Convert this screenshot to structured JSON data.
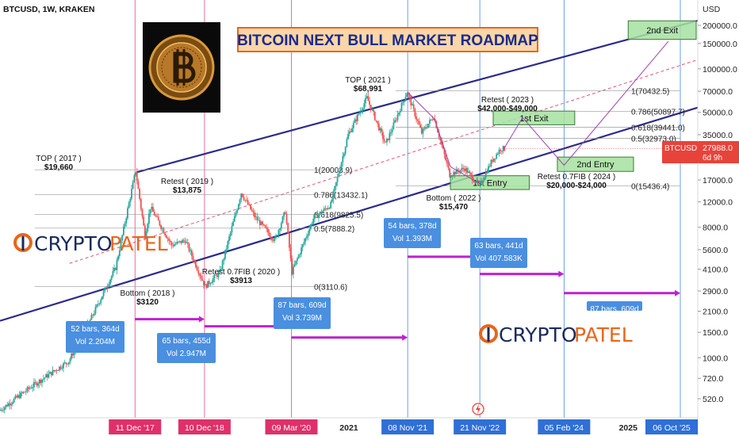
{
  "header": {
    "symbol": "BTCUSD, 1W, KRAKEN",
    "currency": "USD"
  },
  "banner": {
    "title": "BITCOIN NEXT BULL MARKET ROADMAP"
  },
  "brand": {
    "logo_text_left": "CRYPTO",
    "logo_text_right": "PATEL",
    "colors": {
      "blue": "#1a2a5e",
      "orange": "#e8661a"
    }
  },
  "price_badge": {
    "symbol": "BTCUSD",
    "price": "27988.0",
    "countdown": "6d 9h"
  },
  "chart_data": {
    "type": "candlestick",
    "y_scale": "log",
    "y_ticks": [
      "200000.0",
      "150000.0",
      "100000.0",
      "70000.0",
      "50000.0",
      "35000.0",
      "27988.0",
      "17000.0",
      "12000.0",
      "8000.0",
      "5600.0",
      "4100.0",
      "2900.0",
      "2100.0",
      "1500.0",
      "1000.0",
      "720.0",
      "520.0"
    ],
    "x_ticks": [
      {
        "label": "11 Dec '17",
        "style": "pink"
      },
      {
        "label": "10 Dec '18",
        "style": "pink"
      },
      {
        "label": "09 Mar '20",
        "style": "pink"
      },
      {
        "label": "2021",
        "style": "plain"
      },
      {
        "label": "08 Nov '21",
        "style": "blue"
      },
      {
        "label": "21 Nov '22",
        "style": "blue"
      },
      {
        "label": "05 Feb '24",
        "style": "blue"
      },
      {
        "label": "2025",
        "style": "plain"
      },
      {
        "label": "06 Oct '25",
        "style": "blue"
      }
    ],
    "price_anchors": [
      {
        "date": "2016-01-04",
        "price": 430
      },
      {
        "date": "2016-07-04",
        "price": 650
      },
      {
        "date": "2017-01-02",
        "price": 950
      },
      {
        "date": "2017-05-01",
        "price": 1900
      },
      {
        "date": "2017-09-04",
        "price": 4200
      },
      {
        "date": "2017-12-18",
        "price": 19660
      },
      {
        "date": "2018-02-05",
        "price": 7000
      },
      {
        "date": "2018-03-05",
        "price": 11000
      },
      {
        "date": "2018-06-25",
        "price": 6000
      },
      {
        "date": "2018-09-03",
        "price": 6500
      },
      {
        "date": "2018-12-17",
        "price": 3120
      },
      {
        "date": "2019-03-04",
        "price": 3900
      },
      {
        "date": "2019-06-24",
        "price": 13875
      },
      {
        "date": "2019-09-02",
        "price": 9500
      },
      {
        "date": "2019-12-16",
        "price": 6500
      },
      {
        "date": "2020-02-10",
        "price": 10300
      },
      {
        "date": "2020-03-16",
        "price": 3913
      },
      {
        "date": "2020-07-06",
        "price": 9200
      },
      {
        "date": "2020-10-05",
        "price": 11500
      },
      {
        "date": "2021-01-04",
        "price": 35000
      },
      {
        "date": "2021-04-12",
        "price": 63000
      },
      {
        "date": "2021-07-19",
        "price": 30000
      },
      {
        "date": "2021-11-08",
        "price": 68991
      },
      {
        "date": "2022-01-24",
        "price": 36000
      },
      {
        "date": "2022-03-28",
        "price": 47000
      },
      {
        "date": "2022-06-20",
        "price": 18500
      },
      {
        "date": "2022-09-05",
        "price": 20500
      },
      {
        "date": "2022-11-21",
        "price": 15470
      },
      {
        "date": "2023-01-30",
        "price": 23500
      },
      {
        "date": "2023-03-13",
        "price": 28000
      },
      {
        "date": "2023-03-27",
        "price": 27988
      }
    ],
    "series": [
      {
        "name": "Projected path",
        "points": [
          [
            "2023-03-27",
            27988
          ],
          [
            "2023-07-03",
            46000
          ],
          [
            "2024-02-05",
            21500
          ],
          [
            "2025-08-04",
            155000
          ]
        ]
      }
    ],
    "channel": {
      "upper": [
        [
          "2017-12-18",
          19200
        ],
        [
          "2025-10-06",
          200000
        ]
      ],
      "lower": [
        [
          "2016-01-04",
          1800
        ],
        [
          "2025-10-06",
          50000
        ]
      ],
      "mid": [
        [
          "2017-01-02",
          4500
        ],
        [
          "2025-10-06",
          110000
        ]
      ]
    },
    "fib_levels": [
      {
        "label": "1(70432.5)",
        "value": 70432.5
      },
      {
        "label": "0.786(50897.7)",
        "value": 50897.7
      },
      {
        "label": "0.618(39441.0)",
        "value": 39441.0
      },
      {
        "label": "0.5(32973.0)",
        "value": 32973.0
      },
      {
        "label": "0(15436.4)",
        "value": 15436.4
      },
      {
        "label": "1(20003.9)",
        "value": 20003.9
      },
      {
        "label": "0.786(13432.1)",
        "value": 13432.1
      },
      {
        "label": "0.618(9825.5)",
        "value": 9825.5
      },
      {
        "label": "0.5(7888.2)",
        "value": 7888.2
      },
      {
        "label": "0(3110.6)",
        "value": 3110.6
      }
    ],
    "annotations": [
      {
        "lines": [
          "TOP ( 2017 )",
          "$19,660"
        ]
      },
      {
        "lines": [
          "Retest ( 2019 )",
          "$13,875"
        ]
      },
      {
        "lines": [
          "Bottom ( 2018 )",
          "$3120"
        ]
      },
      {
        "lines": [
          "Retest 0.7FIB ( 2020 )",
          "$3913"
        ]
      },
      {
        "lines": [
          "TOP ( 2021 )",
          "$68,991"
        ]
      },
      {
        "lines": [
          "Bottom ( 2022 )",
          "$15,470"
        ]
      },
      {
        "lines": [
          "Retest ( 2023 )",
          "$42,000-$49,000"
        ]
      },
      {
        "lines": [
          "Retest 0.7FIB ( 2024 )",
          "$20,000-$24,000"
        ]
      }
    ],
    "zones": [
      {
        "label": "1st Exit"
      },
      {
        "label": "1st Entry"
      },
      {
        "label": "2nd Entry"
      },
      {
        "label": "2nd Exit"
      }
    ],
    "range_boxes": [
      {
        "lines": [
          "52 bars, 364d",
          "Vol 2.204M"
        ]
      },
      {
        "lines": [
          "65 bars, 455d",
          "Vol 2.947M"
        ]
      },
      {
        "lines": [
          "87 bars, 609d",
          "Vol 3.739M"
        ]
      },
      {
        "lines": [
          "54 bars, 378d",
          "Vol 1.393M"
        ]
      },
      {
        "lines": [
          "63 bars, 441d",
          "Vol 407.583K"
        ]
      },
      {
        "lines": [
          "87 bars, 609d"
        ]
      }
    ]
  }
}
